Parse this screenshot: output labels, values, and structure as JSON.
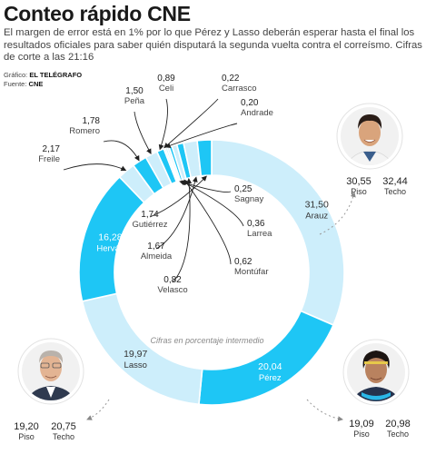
{
  "header": {
    "title": "Conteo rápido CNE",
    "subtitle": "El margen de error está en 1% por lo que Pérez y Lasso deberán esperar hasta el final los resultados oficiales para saber quién disputará la segunda vuelta contra el correísmo. Cifras de corte a las 21:16",
    "graphic_label": "Gráfico:",
    "graphic_source": "EL TELÉGRAFO",
    "source_label": "Fuente:",
    "source_value": "CNE"
  },
  "center_note": "Cifras en porcentaje intermedio",
  "colors": {
    "light": "#cdeefb",
    "cyan": "#1ec6f5",
    "label_on_cyan": "#ffffff",
    "text": "#333333"
  },
  "chart_data": {
    "type": "pie",
    "style": "donut",
    "unit": "porcentaje",
    "categories": [
      "Arauz",
      "Pérez",
      "Lasso",
      "Hervás",
      "Freile",
      "Romero",
      "Peña",
      "Celi",
      "Carrasco",
      "Andrade",
      "Sagnay",
      "Larrea",
      "Montúfar",
      "Velasco",
      "Almeida",
      "Gutiérrez"
    ],
    "values": [
      31.5,
      20.04,
      19.97,
      16.28,
      2.17,
      1.78,
      1.5,
      0.89,
      0.22,
      0.2,
      0.25,
      0.36,
      0.62,
      0.82,
      1.67,
      1.74
    ],
    "labels": [
      "31,50",
      "20,04",
      "19,97",
      "16,28",
      "2,17",
      "1,78",
      "1,50",
      "0,89",
      "0,22",
      "0,20",
      "0,25",
      "0,36",
      "0,62",
      "0,82",
      "1,67",
      "1,74"
    ],
    "highlight": [
      "light",
      "cyan",
      "light",
      "cyan",
      "light",
      "cyan",
      "light",
      "cyan",
      "light",
      "cyan",
      "light",
      "cyan",
      "light",
      "cyan",
      "light",
      "cyan"
    ]
  },
  "candidates": [
    {
      "name": "Arauz",
      "piso_label": "Piso",
      "piso": "30,55",
      "techo_label": "Techo",
      "techo": "32,44"
    },
    {
      "name": "Pérez",
      "piso_label": "Piso",
      "piso": "19,09",
      "techo_label": "Techo",
      "techo": "20,98"
    },
    {
      "name": "Lasso",
      "piso_label": "Piso",
      "piso": "19,20",
      "techo_label": "Techo",
      "techo": "20,75"
    }
  ]
}
